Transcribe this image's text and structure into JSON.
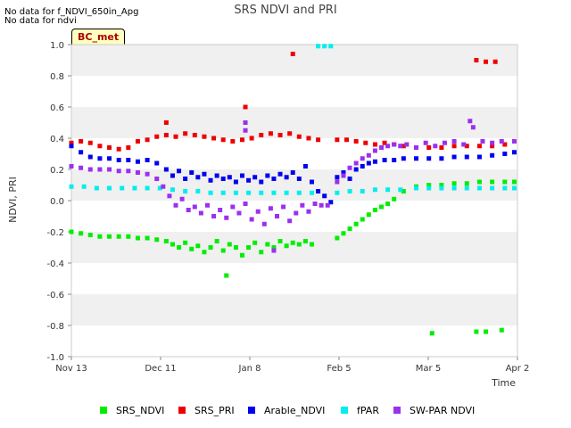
{
  "notes": [
    "No data for f_NDVI_650in_Apg",
    "No data for ndvi"
  ],
  "badge": "BC_met",
  "chart_data": {
    "type": "scatter",
    "title": "SRS NDVI and PRI",
    "xlabel": "Time",
    "ylabel": "NDVI, PRI",
    "xlim": [
      "2023-11-13",
      "2024-04-02"
    ],
    "ylim": [
      -1.0,
      1.0
    ],
    "x_ticks": [
      "Nov 13",
      "Dec 11",
      "Jan 8",
      "Feb 5",
      "Mar 5",
      "Apr 2"
    ],
    "y_ticks": [
      "-1.0",
      "-0.8",
      "-0.6",
      "-0.4",
      "-0.2",
      "0.0",
      "0.2",
      "0.4",
      "0.6",
      "0.8",
      "1.0"
    ],
    "grid": "horizontal bands",
    "legend_position": "bottom",
    "series": [
      {
        "name": "SRS_NDVI",
        "color": "#00ee00",
        "points": [
          [
            "2023-11-13",
            -0.2
          ],
          [
            "2023-11-16",
            -0.21
          ],
          [
            "2023-11-19",
            -0.22
          ],
          [
            "2023-11-22",
            -0.23
          ],
          [
            "2023-11-25",
            -0.23
          ],
          [
            "2023-11-28",
            -0.23
          ],
          [
            "2023-12-01",
            -0.23
          ],
          [
            "2023-12-04",
            -0.24
          ],
          [
            "2023-12-07",
            -0.24
          ],
          [
            "2023-12-10",
            -0.25
          ],
          [
            "2023-12-13",
            -0.26
          ],
          [
            "2023-12-15",
            -0.28
          ],
          [
            "2023-12-17",
            -0.3
          ],
          [
            "2023-12-19",
            -0.27
          ],
          [
            "2023-12-21",
            -0.31
          ],
          [
            "2023-12-23",
            -0.29
          ],
          [
            "2023-12-25",
            -0.33
          ],
          [
            "2023-12-27",
            -0.3
          ],
          [
            "2023-12-29",
            -0.26
          ],
          [
            "2023-12-31",
            -0.32
          ],
          [
            "2024-01-02",
            -0.28
          ],
          [
            "2024-01-04",
            -0.3
          ],
          [
            "2024-01-06",
            -0.35
          ],
          [
            "2024-01-08",
            -0.3
          ],
          [
            "2024-01-10",
            -0.27
          ],
          [
            "2024-01-12",
            -0.33
          ],
          [
            "2024-01-14",
            -0.28
          ],
          [
            "2024-01-16",
            -0.3
          ],
          [
            "2024-01-18",
            -0.26
          ],
          [
            "2024-01-20",
            -0.29
          ],
          [
            "2024-01-22",
            -0.27
          ],
          [
            "2024-01-24",
            -0.28
          ],
          [
            "2024-01-26",
            -0.26
          ],
          [
            "2024-01-28",
            -0.28
          ],
          [
            "2024-01-01",
            -0.48
          ],
          [
            "2024-02-05",
            -0.24
          ],
          [
            "2024-02-07",
            -0.21
          ],
          [
            "2024-02-09",
            -0.18
          ],
          [
            "2024-02-11",
            -0.15
          ],
          [
            "2024-02-13",
            -0.12
          ],
          [
            "2024-02-15",
            -0.09
          ],
          [
            "2024-02-17",
            -0.06
          ],
          [
            "2024-02-19",
            -0.04
          ],
          [
            "2024-02-21",
            -0.02
          ],
          [
            "2024-02-23",
            0.01
          ],
          [
            "2024-02-26",
            0.06
          ],
          [
            "2024-03-01",
            0.09
          ],
          [
            "2024-03-05",
            0.1
          ],
          [
            "2024-03-09",
            0.1
          ],
          [
            "2024-03-13",
            0.11
          ],
          [
            "2024-03-17",
            0.11
          ],
          [
            "2024-03-21",
            0.12
          ],
          [
            "2024-03-25",
            0.12
          ],
          [
            "2024-03-29",
            0.12
          ],
          [
            "2024-04-01",
            0.12
          ],
          [
            "2024-03-06",
            -0.85
          ],
          [
            "2024-03-20",
            -0.84
          ],
          [
            "2024-03-23",
            -0.84
          ],
          [
            "2024-03-28",
            -0.83
          ]
        ]
      },
      {
        "name": "SRS_PRI",
        "color": "#ee0000",
        "points": [
          [
            "2023-11-13",
            0.37
          ],
          [
            "2023-11-16",
            0.38
          ],
          [
            "2023-11-19",
            0.37
          ],
          [
            "2023-11-22",
            0.35
          ],
          [
            "2023-11-25",
            0.34
          ],
          [
            "2023-11-28",
            0.33
          ],
          [
            "2023-12-01",
            0.34
          ],
          [
            "2023-12-04",
            0.38
          ],
          [
            "2023-12-07",
            0.39
          ],
          [
            "2023-12-10",
            0.41
          ],
          [
            "2023-12-13",
            0.42
          ],
          [
            "2023-12-16",
            0.41
          ],
          [
            "2023-12-19",
            0.43
          ],
          [
            "2023-12-22",
            0.42
          ],
          [
            "2023-12-25",
            0.41
          ],
          [
            "2023-12-28",
            0.4
          ],
          [
            "2023-12-31",
            0.39
          ],
          [
            "2024-01-03",
            0.38
          ],
          [
            "2024-01-06",
            0.39
          ],
          [
            "2024-01-09",
            0.4
          ],
          [
            "2024-01-12",
            0.42
          ],
          [
            "2024-01-15",
            0.43
          ],
          [
            "2024-01-18",
            0.42
          ],
          [
            "2024-01-21",
            0.43
          ],
          [
            "2024-01-24",
            0.41
          ],
          [
            "2024-01-27",
            0.4
          ],
          [
            "2024-01-30",
            0.39
          ],
          [
            "2024-01-07",
            0.6
          ],
          [
            "2023-12-13",
            0.5
          ],
          [
            "2024-01-22",
            0.94
          ],
          [
            "2024-02-05",
            0.39
          ],
          [
            "2024-02-08",
            0.39
          ],
          [
            "2024-02-11",
            0.38
          ],
          [
            "2024-02-14",
            0.37
          ],
          [
            "2024-02-17",
            0.36
          ],
          [
            "2024-02-20",
            0.37
          ],
          [
            "2024-02-23",
            0.36
          ],
          [
            "2024-02-26",
            0.35
          ],
          [
            "2024-03-01",
            0.34
          ],
          [
            "2024-03-05",
            0.34
          ],
          [
            "2024-03-09",
            0.34
          ],
          [
            "2024-03-13",
            0.35
          ],
          [
            "2024-03-17",
            0.35
          ],
          [
            "2024-03-21",
            0.35
          ],
          [
            "2024-03-25",
            0.35
          ],
          [
            "2024-03-29",
            0.36
          ],
          [
            "2024-03-20",
            0.9
          ],
          [
            "2024-03-23",
            0.89
          ],
          [
            "2024-03-26",
            0.89
          ]
        ]
      },
      {
        "name": "Arable_NDVI",
        "color": "#0000ee",
        "points": [
          [
            "2023-11-13",
            0.35
          ],
          [
            "2023-11-16",
            0.31
          ],
          [
            "2023-11-19",
            0.28
          ],
          [
            "2023-11-22",
            0.27
          ],
          [
            "2023-11-25",
            0.27
          ],
          [
            "2023-11-28",
            0.26
          ],
          [
            "2023-12-01",
            0.26
          ],
          [
            "2023-12-04",
            0.25
          ],
          [
            "2023-12-07",
            0.26
          ],
          [
            "2023-12-10",
            0.24
          ],
          [
            "2023-12-13",
            0.2
          ],
          [
            "2023-12-15",
            0.16
          ],
          [
            "2023-12-17",
            0.19
          ],
          [
            "2023-12-19",
            0.14
          ],
          [
            "2023-12-21",
            0.18
          ],
          [
            "2023-12-23",
            0.15
          ],
          [
            "2023-12-25",
            0.17
          ],
          [
            "2023-12-27",
            0.13
          ],
          [
            "2023-12-29",
            0.16
          ],
          [
            "2023-12-31",
            0.14
          ],
          [
            "2024-01-02",
            0.15
          ],
          [
            "2024-01-04",
            0.12
          ],
          [
            "2024-01-06",
            0.16
          ],
          [
            "2024-01-08",
            0.13
          ],
          [
            "2024-01-10",
            0.15
          ],
          [
            "2024-01-12",
            0.12
          ],
          [
            "2024-01-14",
            0.16
          ],
          [
            "2024-01-16",
            0.14
          ],
          [
            "2024-01-18",
            0.17
          ],
          [
            "2024-01-20",
            0.15
          ],
          [
            "2024-01-22",
            0.18
          ],
          [
            "2024-01-24",
            0.14
          ],
          [
            "2024-01-26",
            0.22
          ],
          [
            "2024-01-28",
            0.12
          ],
          [
            "2024-01-30",
            0.06
          ],
          [
            "2024-02-01",
            0.03
          ],
          [
            "2024-02-03",
            -0.01
          ],
          [
            "2024-02-05",
            0.15
          ],
          [
            "2024-02-07",
            0.18
          ],
          [
            "2024-02-09",
            0.14
          ],
          [
            "2024-02-11",
            0.2
          ],
          [
            "2024-02-13",
            0.22
          ],
          [
            "2024-02-15",
            0.24
          ],
          [
            "2024-02-17",
            0.25
          ],
          [
            "2024-02-20",
            0.26
          ],
          [
            "2024-02-23",
            0.26
          ],
          [
            "2024-02-26",
            0.27
          ],
          [
            "2024-03-01",
            0.27
          ],
          [
            "2024-03-05",
            0.27
          ],
          [
            "2024-03-09",
            0.27
          ],
          [
            "2024-03-13",
            0.28
          ],
          [
            "2024-03-17",
            0.28
          ],
          [
            "2024-03-21",
            0.28
          ],
          [
            "2024-03-25",
            0.29
          ],
          [
            "2024-03-29",
            0.3
          ],
          [
            "2024-04-01",
            0.31
          ]
        ]
      },
      {
        "name": "fPAR",
        "color": "#00eeee",
        "points": [
          [
            "2023-11-13",
            0.09
          ],
          [
            "2023-11-17",
            0.09
          ],
          [
            "2023-11-21",
            0.08
          ],
          [
            "2023-11-25",
            0.08
          ],
          [
            "2023-11-29",
            0.08
          ],
          [
            "2023-12-03",
            0.08
          ],
          [
            "2023-12-07",
            0.08
          ],
          [
            "2023-12-11",
            0.08
          ],
          [
            "2023-12-15",
            0.07
          ],
          [
            "2023-12-19",
            0.06
          ],
          [
            "2023-12-23",
            0.06
          ],
          [
            "2023-12-27",
            0.05
          ],
          [
            "2023-12-31",
            0.05
          ],
          [
            "2024-01-04",
            0.05
          ],
          [
            "2024-01-08",
            0.05
          ],
          [
            "2024-01-12",
            0.05
          ],
          [
            "2024-01-16",
            0.05
          ],
          [
            "2024-01-20",
            0.05
          ],
          [
            "2024-01-24",
            0.05
          ],
          [
            "2024-01-28",
            0.05
          ],
          [
            "2024-01-30",
            0.99
          ],
          [
            "2024-02-01",
            0.99
          ],
          [
            "2024-02-03",
            0.99
          ],
          [
            "2024-02-05",
            0.05
          ],
          [
            "2024-02-09",
            0.06
          ],
          [
            "2024-02-13",
            0.06
          ],
          [
            "2024-02-17",
            0.07
          ],
          [
            "2024-02-21",
            0.07
          ],
          [
            "2024-02-25",
            0.07
          ],
          [
            "2024-03-01",
            0.08
          ],
          [
            "2024-03-05",
            0.08
          ],
          [
            "2024-03-09",
            0.08
          ],
          [
            "2024-03-13",
            0.08
          ],
          [
            "2024-03-17",
            0.08
          ],
          [
            "2024-03-21",
            0.08
          ],
          [
            "2024-03-25",
            0.08
          ],
          [
            "2024-03-29",
            0.08
          ],
          [
            "2024-04-01",
            0.08
          ]
        ]
      },
      {
        "name": "SW-PAR NDVI",
        "color": "#9b30ee",
        "points": [
          [
            "2023-11-13",
            0.22
          ],
          [
            "2023-11-16",
            0.21
          ],
          [
            "2023-11-19",
            0.2
          ],
          [
            "2023-11-22",
            0.2
          ],
          [
            "2023-11-25",
            0.2
          ],
          [
            "2023-11-28",
            0.19
          ],
          [
            "2023-12-01",
            0.19
          ],
          [
            "2023-12-04",
            0.18
          ],
          [
            "2023-12-07",
            0.17
          ],
          [
            "2023-12-10",
            0.14
          ],
          [
            "2023-12-12",
            0.09
          ],
          [
            "2023-12-14",
            0.03
          ],
          [
            "2023-12-16",
            -0.03
          ],
          [
            "2023-12-18",
            0.01
          ],
          [
            "2023-12-20",
            -0.06
          ],
          [
            "2023-12-22",
            -0.04
          ],
          [
            "2023-12-24",
            -0.08
          ],
          [
            "2023-12-26",
            -0.03
          ],
          [
            "2023-12-28",
            -0.1
          ],
          [
            "2023-12-30",
            -0.06
          ],
          [
            "2024-01-01",
            -0.11
          ],
          [
            "2024-01-03",
            -0.04
          ],
          [
            "2024-01-05",
            -0.08
          ],
          [
            "2024-01-07",
            -0.02
          ],
          [
            "2024-01-09",
            -0.12
          ],
          [
            "2024-01-11",
            -0.07
          ],
          [
            "2024-01-13",
            -0.15
          ],
          [
            "2024-01-15",
            -0.05
          ],
          [
            "2024-01-17",
            -0.1
          ],
          [
            "2024-01-19",
            -0.04
          ],
          [
            "2024-01-21",
            -0.13
          ],
          [
            "2024-01-23",
            -0.08
          ],
          [
            "2024-01-25",
            -0.03
          ],
          [
            "2024-01-27",
            -0.07
          ],
          [
            "2024-01-29",
            -0.02
          ],
          [
            "2024-01-31",
            -0.03
          ],
          [
            "2024-02-02",
            -0.03
          ],
          [
            "2024-01-07",
            0.5
          ],
          [
            "2024-01-07",
            0.45
          ],
          [
            "2024-01-16",
            -0.32
          ],
          [
            "2024-02-05",
            0.12
          ],
          [
            "2024-02-07",
            0.16
          ],
          [
            "2024-02-09",
            0.21
          ],
          [
            "2024-02-11",
            0.24
          ],
          [
            "2024-02-13",
            0.27
          ],
          [
            "2024-02-15",
            0.29
          ],
          [
            "2024-02-17",
            0.32
          ],
          [
            "2024-02-19",
            0.34
          ],
          [
            "2024-02-21",
            0.35
          ],
          [
            "2024-02-23",
            0.36
          ],
          [
            "2024-02-25",
            0.35
          ],
          [
            "2024-02-27",
            0.36
          ],
          [
            "2024-03-01",
            0.34
          ],
          [
            "2024-03-04",
            0.37
          ],
          [
            "2024-03-07",
            0.35
          ],
          [
            "2024-03-10",
            0.37
          ],
          [
            "2024-03-13",
            0.38
          ],
          [
            "2024-03-16",
            0.36
          ],
          [
            "2024-03-18",
            0.51
          ],
          [
            "2024-03-19",
            0.47
          ],
          [
            "2024-03-22",
            0.38
          ],
          [
            "2024-03-25",
            0.37
          ],
          [
            "2024-03-28",
            0.38
          ],
          [
            "2024-04-01",
            0.38
          ]
        ]
      }
    ]
  }
}
